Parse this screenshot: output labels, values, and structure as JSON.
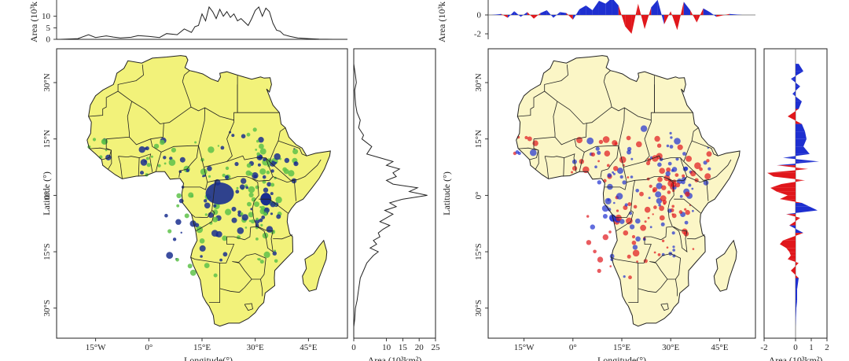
{
  "chart_data": [
    {
      "panel": "left",
      "type": "area",
      "colors": {
        "land": "#f2f27a",
        "wet_mid": "#5ec24a",
        "wet_high": "#1a2f8f",
        "line": "#222222"
      },
      "top_profile": {
        "ylabel": "Area (10³k",
        "yticks": [
          "10",
          "5",
          "0"
        ],
        "ylim": [
          0,
          15
        ],
        "x": [
          -25,
          -20,
          -17,
          -15,
          -12,
          -10,
          -8,
          -5,
          -3,
          0,
          3,
          5,
          8,
          10,
          12,
          13,
          14,
          15,
          16,
          17,
          18,
          19,
          20,
          21,
          22,
          23,
          24,
          25,
          26,
          27,
          28,
          29,
          30,
          31,
          32,
          33,
          34,
          35,
          36,
          37,
          38,
          40,
          42,
          45,
          48,
          52
        ],
        "y": [
          0,
          0.3,
          2.0,
          0.8,
          1.5,
          1.0,
          0.6,
          0.9,
          1.6,
          1.3,
          0.8,
          2.5,
          2.0,
          4.5,
          3.0,
          5.5,
          6.0,
          11.0,
          8.0,
          14.0,
          12.0,
          9.0,
          13.0,
          10.0,
          12.0,
          9.5,
          11.0,
          8.0,
          9.0,
          7.5,
          6.0,
          9.0,
          12.5,
          14.0,
          10.0,
          13.5,
          12.0,
          7.0,
          4.0,
          3.5,
          2.0,
          1.2,
          0.6,
          0.3,
          0.1,
          0
        ]
      },
      "side_profile": {
        "xticks": [
          "0",
          "10",
          "15",
          "20",
          "25"
        ],
        "xlim": [
          0,
          25
        ],
        "lat": [
          35,
          32,
          30,
          28,
          26,
          24,
          22,
          20,
          18,
          16,
          15,
          13,
          11,
          10,
          9,
          8,
          7,
          6,
          5,
          4,
          3,
          2,
          1,
          0,
          -1,
          -2,
          -3,
          -4,
          -5,
          -6,
          -7,
          -8,
          -9,
          -10,
          -11,
          -12,
          -13,
          -14,
          -15,
          -16,
          -17,
          -18,
          -20,
          -22,
          -25,
          -28,
          -30,
          -33,
          -35
        ],
        "area": [
          0,
          0.5,
          0.8,
          0.3,
          0.4,
          0.6,
          1.0,
          2.0,
          1.5,
          3.0,
          2.5,
          5.5,
          4.0,
          8.0,
          12.0,
          10.0,
          14.0,
          12.0,
          13.0,
          10.0,
          12.0,
          19.5,
          17.0,
          22.5,
          15.0,
          11.0,
          13.0,
          9.5,
          12.0,
          10.0,
          8.0,
          11.0,
          9.0,
          7.5,
          8.0,
          6.0,
          7.0,
          5.0,
          7.5,
          6.0,
          5.0,
          4.0,
          3.0,
          2.0,
          1.5,
          1.0,
          0.5,
          0.3,
          0
        ]
      },
      "map": {
        "xticks": [
          "15°W",
          "0°",
          "15°E",
          "30°E",
          "45°E"
        ],
        "yticks": [
          "30°N",
          "15°N",
          "0°",
          "15°S",
          "30°S"
        ],
        "xlabel": "Longitude(°)",
        "ylabel": "Latitude (°)"
      },
      "side_xlabel": "Area (10³km²)"
    },
    {
      "panel": "right",
      "type": "area",
      "colors": {
        "land": "#fbf6c6",
        "pos": "#1e2fd0",
        "neg": "#e0161b",
        "line": "#222222"
      },
      "top_profile": {
        "ylabel": "Area (10³k",
        "yticks": [
          "0",
          "-2"
        ],
        "ylim": [
          -2.5,
          2
        ],
        "x": [
          -25,
          -22,
          -20,
          -18,
          -16,
          -14,
          -12,
          -10,
          -8,
          -6,
          -4,
          -2,
          0,
          2,
          4,
          6,
          8,
          10,
          12,
          14,
          16,
          18,
          20,
          22,
          24,
          26,
          28,
          30,
          32,
          34,
          36,
          38,
          40,
          42,
          44,
          48,
          52
        ],
        "y": [
          0,
          0.1,
          -0.3,
          0.4,
          -0.2,
          0.3,
          -0.4,
          0.2,
          0.5,
          -0.3,
          0.3,
          0.2,
          -0.5,
          0.6,
          1.0,
          0.5,
          1.5,
          1.2,
          1.8,
          1.0,
          -1.2,
          -2.0,
          1.2,
          -1.5,
          0.8,
          1.6,
          -1.0,
          0.4,
          -1.6,
          1.4,
          0.5,
          -0.8,
          0.7,
          0.3,
          -0.2,
          0.1,
          0
        ]
      },
      "side_profile": {
        "xticks": [
          "-2",
          "0",
          "1",
          "2"
        ],
        "xlim": [
          -2,
          2
        ],
        "lat": [
          35,
          33,
          31,
          29,
          27,
          25,
          23,
          21,
          19,
          17,
          15,
          13,
          11,
          10,
          9,
          8,
          7,
          6,
          5,
          4,
          3,
          2,
          1,
          0,
          -1,
          -2,
          -3,
          -4,
          -5,
          -6,
          -8,
          -10,
          -12,
          -13,
          -14,
          -15,
          -16,
          -17,
          -18,
          -20,
          -22,
          -25,
          -28,
          -30,
          -33,
          -35
        ],
        "area": [
          0.2,
          0.5,
          -0.3,
          0.3,
          -0.2,
          0.4,
          0.2,
          -0.5,
          0.4,
          0.6,
          0.7,
          0.5,
          0.9,
          -0.8,
          1.5,
          -1.2,
          0.8,
          -1.8,
          -1.4,
          0.6,
          -0.9,
          -1.6,
          -1.2,
          -0.5,
          -1.0,
          0.4,
          0.9,
          1.4,
          -0.6,
          0.3,
          -0.4,
          0.5,
          -0.8,
          -1.0,
          -0.6,
          -0.4,
          -0.3,
          -0.5,
          0.2,
          -0.3,
          0.2,
          0.1,
          0.1,
          0.05,
          0.02,
          0
        ]
      },
      "map": {
        "xticks": [
          "15°W",
          "0°",
          "15°E",
          "30°E",
          "45°E"
        ],
        "yticks": [
          "30°N",
          "15°N",
          "0°",
          "15°S",
          "30°S"
        ],
        "xlabel": "Longitude(°)",
        "ylabel": "Latitude (°)"
      },
      "side_xlabel": "Area (10³km²)"
    }
  ]
}
